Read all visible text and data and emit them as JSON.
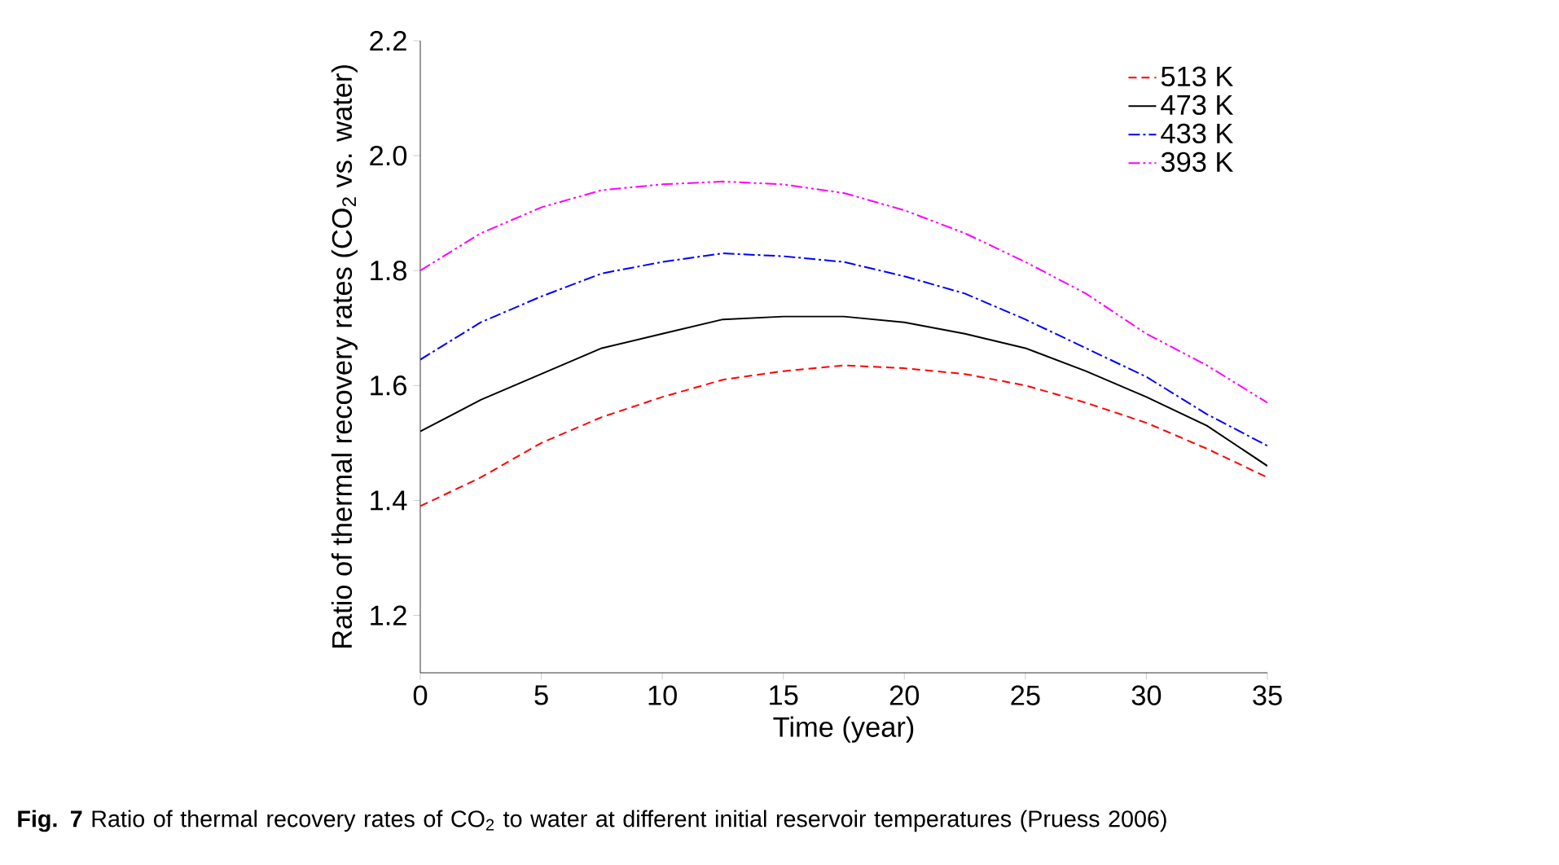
{
  "chart_data": {
    "type": "line",
    "xlabel": "Time (year)",
    "ylabel": "Ratio of thermal recovery rates (CO$_{2}$ vs. water)",
    "annotations": [
      "**Fig. 7** Ratio of thermal recovery rates of CO$_{2}$ to water at different initial reservoir temperatures (Pruess 2006)"
    ],
    "x": [
      0,
      2.5,
      5,
      7.5,
      10,
      12.5,
      15,
      17.5,
      20,
      22.5,
      25,
      27.5,
      30,
      32.5,
      35
    ],
    "series": [
      {
        "name": "513 K",
        "color": "#ff0000",
        "line_style": "dashed",
        "values": [
          1.39,
          1.44,
          1.5,
          1.545,
          1.58,
          1.61,
          1.625,
          1.635,
          1.63,
          1.62,
          1.6,
          1.57,
          1.535,
          1.49,
          1.44
        ]
      },
      {
        "name": "473 K",
        "color": "#000000",
        "line_style": "solid",
        "values": [
          1.52,
          1.575,
          1.62,
          1.665,
          1.69,
          1.715,
          1.72,
          1.72,
          1.71,
          1.69,
          1.665,
          1.625,
          1.58,
          1.53,
          1.46
        ]
      },
      {
        "name": "433 K",
        "color": "#0000ff",
        "line_style": "dashdot",
        "values": [
          1.645,
          1.71,
          1.755,
          1.795,
          1.815,
          1.83,
          1.825,
          1.815,
          1.79,
          1.76,
          1.715,
          1.665,
          1.615,
          1.55,
          1.495
        ]
      },
      {
        "name": "393 K",
        "color": "#ff00ff",
        "line_style": "dashdotdot",
        "values": [
          1.8,
          1.865,
          1.91,
          1.94,
          1.95,
          1.955,
          1.95,
          1.935,
          1.905,
          1.865,
          1.815,
          1.76,
          1.69,
          1.635,
          1.57
        ]
      }
    ],
    "xlim": [
      0,
      35
    ],
    "xticks": [
      0,
      5,
      10,
      15,
      20,
      25,
      30,
      35
    ],
    "ylim": [
      1.1,
      2.2
    ],
    "yticks": [
      1.2,
      1.4,
      1.6,
      1.8,
      {
        "value": 2,
        "label": "2.0"
      },
      2.2
    ],
    "legend": "top right",
    "marker": "none",
    "grid": false
  }
}
